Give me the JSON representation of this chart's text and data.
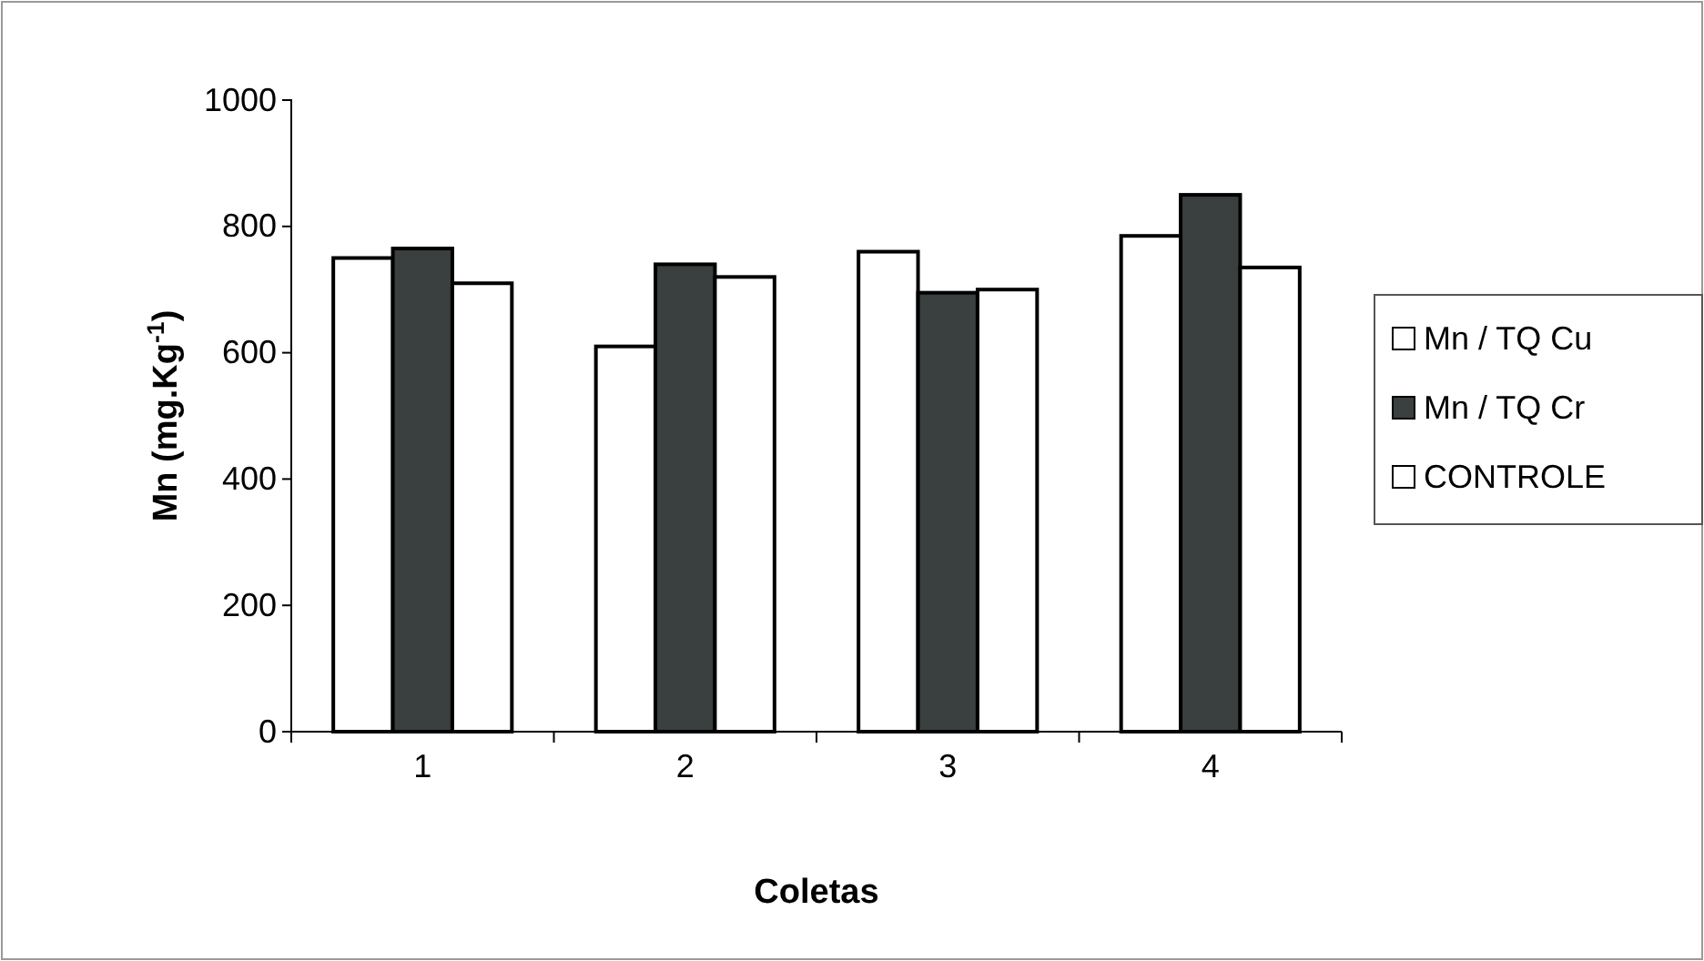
{
  "chart_data": {
    "type": "bar",
    "xlabel": "Coletas",
    "ylabel": "Mn (mg.Kg$^{-1}$)",
    "categories": [
      "1",
      "2",
      "3",
      "4"
    ],
    "series": [
      {
        "name": "Mn / TQ Cu",
        "color": "#ffffff",
        "values": [
          750,
          610,
          760,
          785
        ]
      },
      {
        "name": "Mn / TQ Cr",
        "color": "#3a3f3f",
        "values": [
          765,
          740,
          695,
          850
        ]
      },
      {
        "name": "CONTROLE",
        "color": "#ffffff",
        "values": [
          710,
          720,
          700,
          735
        ]
      }
    ],
    "ylim": [
      0,
      1000
    ],
    "yticks": [
      0,
      200,
      400,
      600,
      800,
      1000
    ],
    "grid": false,
    "legend": "right"
  }
}
